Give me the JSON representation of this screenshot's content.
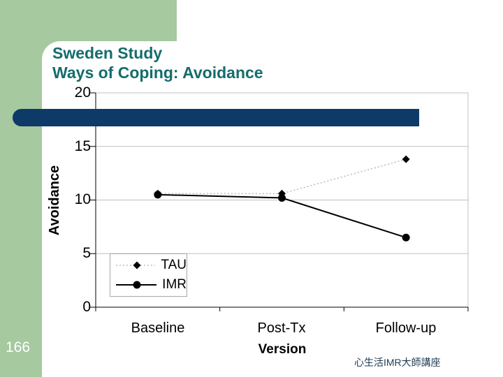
{
  "slide": {
    "title_line1": "Sweden Study",
    "title_line2": "Ways of Coping: Avoidance",
    "page_number": "166",
    "footer": "心生活IMR大師講座"
  },
  "colors": {
    "accent_green": "#a6c9a0",
    "accent_navy": "#0d3a67",
    "title_teal": "#156c6c",
    "footer_blue": "#1f3b52",
    "gridline": "#c0c0c0",
    "tau_line": "#bdbdbd",
    "series_marker": "#000000"
  },
  "chart_data": {
    "type": "line",
    "categories": [
      "Baseline",
      "Post-Tx",
      "Follow-up"
    ],
    "series": [
      {
        "name": "TAU",
        "values": [
          10.6,
          10.6,
          13.8
        ],
        "marker": "diamond",
        "line_style": "dotted",
        "line_color": "#bdbdbd"
      },
      {
        "name": "IMR",
        "values": [
          10.5,
          10.2,
          6.5
        ],
        "marker": "circle",
        "line_style": "solid",
        "line_color": "#000000"
      }
    ],
    "xlabel": "Version",
    "ylabel": "Avoidance",
    "ylim": [
      0,
      20
    ],
    "ytick_interval": 5,
    "yticks": [
      "20",
      "15",
      "10",
      "5",
      "0"
    ],
    "grid": true,
    "legend_position": "lower-left"
  }
}
